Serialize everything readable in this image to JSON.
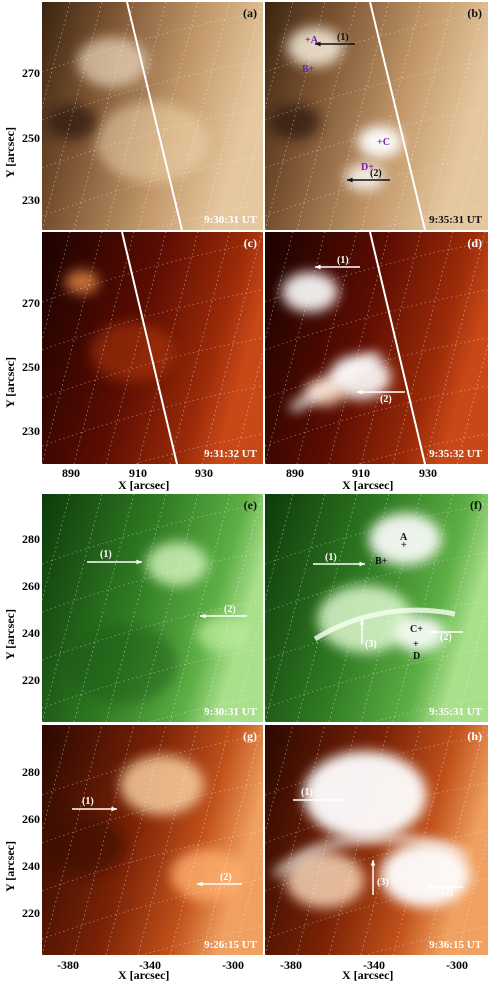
{
  "figure": {
    "panels": [
      {
        "id": "a",
        "label": "(a)",
        "time": "9:30:31 UT",
        "palette": "brown"
      },
      {
        "id": "b",
        "label": "(b)",
        "time": "9:35:31 UT",
        "palette": "brown",
        "markers": [
          "A",
          "B",
          "C",
          "D"
        ],
        "arrows": [
          "(1)",
          "(2)"
        ]
      },
      {
        "id": "c",
        "label": "(c)",
        "time": "9:31:32 UT",
        "palette": "red"
      },
      {
        "id": "d",
        "label": "(d)",
        "time": "9:35:32 UT",
        "palette": "red",
        "arrows": [
          "(1)",
          "(2)"
        ]
      },
      {
        "id": "e",
        "label": "(e)",
        "time": "9:30:31 UT",
        "palette": "green",
        "arrows": [
          "(1)",
          "(2)"
        ]
      },
      {
        "id": "f",
        "label": "(f)",
        "time": "9:35:31 UT",
        "palette": "green",
        "markers": [
          "A",
          "B",
          "C",
          "D"
        ],
        "arrows": [
          "(1)",
          "(2)",
          "(3)"
        ]
      },
      {
        "id": "g",
        "label": "(g)",
        "time": "9:26:15 UT",
        "palette": "orange",
        "arrows": [
          "(1)",
          "(2)"
        ]
      },
      {
        "id": "h",
        "label": "(h)",
        "time": "9:36:15 UT",
        "palette": "orange",
        "arrows": [
          "(1)",
          "(2)",
          "(3)"
        ]
      }
    ],
    "top_axes": {
      "ylabel": "Y [arcsec]",
      "xlabel": "X [arcsec]",
      "yticks": [
        "270",
        "250",
        "230"
      ],
      "xticks": [
        "890",
        "910",
        "930"
      ]
    },
    "bottom_axes": {
      "ylabel": "Y [arcsec]",
      "xlabel": "X [arcsec]",
      "yticks": [
        "280",
        "260",
        "240",
        "220"
      ],
      "xticks": [
        "-380",
        "-340",
        "-300"
      ]
    },
    "colors": {
      "brown": "#b8895a",
      "red": "#6e1404",
      "green": "#4a9a34",
      "orange": "#8a2a08"
    }
  }
}
